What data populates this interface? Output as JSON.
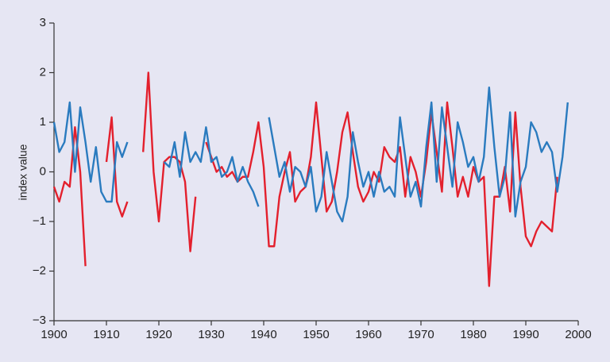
{
  "chart_data": {
    "type": "line",
    "y_label": "index value",
    "x": [
      1900,
      1901,
      1902,
      1903,
      1904,
      1905,
      1906,
      1907,
      1908,
      1909,
      1910,
      1911,
      1912,
      1913,
      1914,
      1915,
      1916,
      1917,
      1918,
      1919,
      1920,
      1921,
      1922,
      1923,
      1924,
      1925,
      1926,
      1927,
      1928,
      1929,
      1930,
      1931,
      1932,
      1933,
      1934,
      1935,
      1936,
      1937,
      1938,
      1939,
      1940,
      1941,
      1942,
      1943,
      1944,
      1945,
      1946,
      1947,
      1948,
      1949,
      1950,
      1951,
      1952,
      1953,
      1954,
      1955,
      1956,
      1957,
      1958,
      1959,
      1960,
      1961,
      1962,
      1963,
      1964,
      1965,
      1966,
      1967,
      1968,
      1969,
      1970,
      1971,
      1972,
      1973,
      1974,
      1975,
      1976,
      1977,
      1978,
      1979,
      1980,
      1981,
      1982,
      1983,
      1984,
      1985,
      1986,
      1987,
      1988,
      1989,
      1990,
      1991,
      1992,
      1993,
      1994,
      1995,
      1996,
      1997,
      1998
    ],
    "series": [
      {
        "color": "#e3202d",
        "values": [
          -0.3,
          -0.6,
          -0.2,
          -0.3,
          0.9,
          0.0,
          -1.9,
          null,
          null,
          null,
          0.2,
          1.1,
          -0.6,
          -0.9,
          -0.6,
          null,
          null,
          0.4,
          2.0,
          0.0,
          -1.0,
          0.2,
          0.3,
          0.3,
          0.2,
          -0.2,
          -1.6,
          -0.5,
          null,
          0.6,
          0.3,
          0.0,
          0.1,
          -0.1,
          0.0,
          -0.2,
          -0.1,
          -0.1,
          0.4,
          1.0,
          0.1,
          -1.5,
          -1.5,
          -0.5,
          0.0,
          0.4,
          -0.6,
          -0.4,
          -0.3,
          0.3,
          1.4,
          0.3,
          -0.8,
          -0.6,
          0.0,
          0.8,
          1.2,
          0.4,
          -0.3,
          -0.6,
          -0.4,
          0.0,
          -0.2,
          0.5,
          0.3,
          0.2,
          0.5,
          -0.5,
          0.3,
          0.0,
          -0.5,
          0.2,
          1.2,
          0.4,
          -0.4,
          1.4,
          0.5,
          -0.5,
          -0.1,
          -0.5,
          0.1,
          -0.2,
          -0.1,
          -2.3,
          -0.5,
          -0.5,
          0.1,
          -0.8,
          1.2,
          -0.3,
          -1.3,
          -1.5,
          -1.2,
          -1.0,
          -1.1,
          -1.2,
          -0.1,
          null,
          null
        ]
      },
      {
        "color": "#2a7bbf",
        "values": [
          1.0,
          0.4,
          0.6,
          1.4,
          0.0,
          1.3,
          0.6,
          -0.2,
          0.5,
          -0.4,
          -0.6,
          -0.6,
          0.6,
          0.3,
          0.6,
          null,
          null,
          null,
          null,
          null,
          null,
          0.2,
          0.1,
          0.6,
          -0.1,
          0.8,
          0.2,
          0.4,
          0.2,
          0.9,
          0.2,
          0.3,
          -0.1,
          0.0,
          0.3,
          -0.2,
          0.1,
          -0.2,
          -0.4,
          -0.7,
          null,
          1.1,
          0.5,
          -0.1,
          0.2,
          -0.4,
          0.1,
          0.0,
          -0.3,
          0.1,
          -0.8,
          -0.5,
          0.4,
          -0.2,
          -0.8,
          -1.0,
          -0.5,
          0.8,
          0.2,
          -0.3,
          0.0,
          -0.5,
          0.0,
          -0.4,
          -0.3,
          -0.5,
          1.1,
          0.3,
          -0.5,
          -0.2,
          -0.7,
          0.5,
          1.4,
          -0.2,
          1.3,
          0.5,
          -0.3,
          1.0,
          0.6,
          0.1,
          0.3,
          -0.2,
          0.3,
          1.7,
          0.5,
          -0.5,
          -0.1,
          1.2,
          -0.9,
          -0.2,
          0.1,
          1.0,
          0.8,
          0.4,
          0.6,
          0.4,
          -0.4,
          0.3,
          1.4
        ]
      }
    ],
    "xlim": [
      1900,
      2000
    ],
    "xticks": [
      1900,
      1910,
      1920,
      1930,
      1940,
      1950,
      1960,
      1970,
      1980,
      1990,
      2000
    ],
    "ylim": [
      -3,
      3
    ],
    "yticks": [
      {
        "value": -3,
        "label": "−3"
      },
      {
        "value": -2,
        "label": "−2"
      },
      {
        "value": -1,
        "label": "−1"
      },
      0,
      1,
      2,
      3
    ],
    "grid": false
  }
}
